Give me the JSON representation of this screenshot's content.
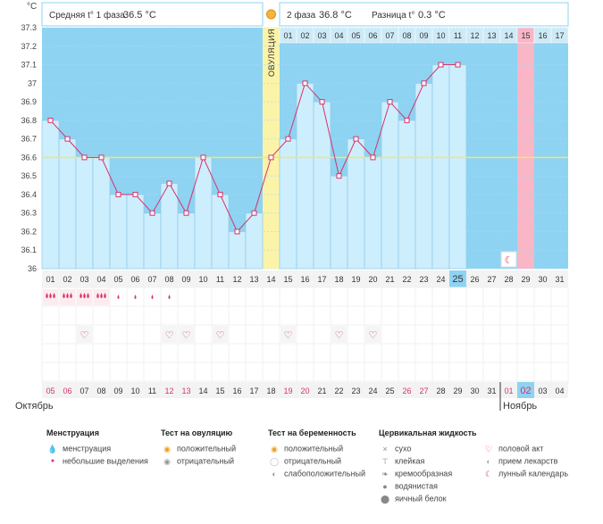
{
  "header": {
    "avg1_label": "Средняя t° 1 фаза",
    "avg1_value": "36.5 °C",
    "avg2_label": "2 фаза",
    "avg2_value": "36.8 °C",
    "diff_label": "Разница t°",
    "diff_value": "0.3 °C",
    "ovulation_label": "ОВУЛЯЦИЯ",
    "phase2_days": [
      "01",
      "02",
      "03",
      "04",
      "05",
      "06",
      "07",
      "08",
      "09",
      "10",
      "11",
      "12",
      "13",
      "14",
      "15",
      "16",
      "17"
    ]
  },
  "colors": {
    "sky": "#8ed3f2",
    "bar_fill": "#cdeefd",
    "bar_stroke": "#8fc9e8",
    "line": "#d6336c",
    "ovulation": "#fbf3a8",
    "expected_period": "#f8b6c6",
    "today": "#8ed3f2",
    "weekend_red": "#d6336c"
  },
  "months": {
    "start": "Октябрь",
    "end": "Ноябрь"
  },
  "chart_data": {
    "type": "line",
    "unit": "°C",
    "ylim": [
      36,
      37.3
    ],
    "yticks": [
      "36",
      "36.1",
      "36.2",
      "36.3",
      "36.4",
      "36.5",
      "36.6",
      "36.7",
      "36.8",
      "36.9",
      "37",
      "37.1",
      "37.2",
      "37.3"
    ],
    "cycle_days": [
      "01",
      "02",
      "03",
      "04",
      "05",
      "06",
      "07",
      "08",
      "09",
      "10",
      "11",
      "12",
      "13",
      "14",
      "15",
      "16",
      "17",
      "18",
      "19",
      "20",
      "21",
      "22",
      "23",
      "24",
      "25",
      "26",
      "27",
      "28",
      "29",
      "30",
      "31"
    ],
    "dates": [
      "05",
      "06",
      "07",
      "08",
      "09",
      "10",
      "11",
      "12",
      "13",
      "14",
      "15",
      "16",
      "17",
      "18",
      "19",
      "20",
      "21",
      "22",
      "23",
      "24",
      "25",
      "26",
      "27",
      "28",
      "29",
      "30",
      "31",
      "01",
      "02",
      "03",
      "04"
    ],
    "weekend_dates": [
      0,
      1,
      7,
      8,
      14,
      15,
      21,
      22,
      27,
      28
    ],
    "temperatures": [
      36.8,
      36.7,
      36.6,
      36.6,
      36.4,
      36.4,
      36.3,
      36.46,
      36.3,
      36.6,
      36.4,
      36.2,
      36.3,
      36.6,
      36.7,
      37.0,
      36.9,
      36.5,
      36.7,
      36.6,
      36.9,
      36.8,
      37.0,
      37.1,
      37.1
    ],
    "coverline": 36.6,
    "ovulation_day": 14,
    "expected_period_day": 29,
    "today_day": 25,
    "lunar_day": 28,
    "menstruation": [
      3,
      3,
      3,
      3,
      1,
      1,
      1,
      1
    ],
    "intercourse_days": [
      3,
      8,
      9,
      11,
      15,
      18,
      20
    ]
  },
  "legend": {
    "menstruation": {
      "title": "Менструация",
      "items": [
        "менструация",
        "небольшие выделения"
      ]
    },
    "ovulation_test": {
      "title": "Тест на овуляцию",
      "items": [
        "положительный",
        "отрицательный"
      ]
    },
    "pregnancy_test": {
      "title": "Тест на беременность",
      "items": [
        "положительный",
        "отрицательный",
        "слабоположительный"
      ]
    },
    "cervical_fluid": {
      "title": "Цервикальная жидкость",
      "items": [
        "сухо",
        "клейкая",
        "кремообразная",
        "водянистая",
        "яичный белок"
      ]
    },
    "other": {
      "items": [
        "половой акт",
        "прием лекарств",
        "лунный календарь"
      ]
    }
  }
}
